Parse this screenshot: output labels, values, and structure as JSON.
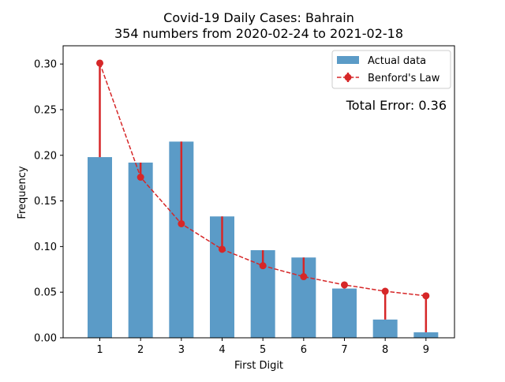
{
  "chart_data": {
    "type": "bar",
    "title": "Covid-19 Daily Cases: Bahrain",
    "subtitle": "354 numbers from 2020-02-24 to 2021-02-18",
    "xlabel": "First Digit",
    "ylabel": "Frequency",
    "categories": [
      "1",
      "2",
      "3",
      "4",
      "5",
      "6",
      "7",
      "8",
      "9"
    ],
    "x": [
      1,
      2,
      3,
      4,
      5,
      6,
      7,
      8,
      9
    ],
    "ylim": [
      0,
      0.32
    ],
    "yticks": [
      0.0,
      0.05,
      0.1,
      0.15,
      0.2,
      0.25,
      0.3
    ],
    "ytick_labels": [
      "0.00",
      "0.05",
      "0.10",
      "0.15",
      "0.20",
      "0.25",
      "0.30"
    ],
    "series": [
      {
        "name": "Actual data",
        "kind": "bar",
        "color": "#5b9bc7",
        "values": [
          0.198,
          0.192,
          0.215,
          0.133,
          0.096,
          0.088,
          0.054,
          0.02,
          0.006
        ]
      },
      {
        "name": "Benford's Law",
        "kind": "line",
        "style": "dashed",
        "marker": "circle",
        "color": "#d62728",
        "values": [
          0.301,
          0.176,
          0.125,
          0.097,
          0.079,
          0.067,
          0.058,
          0.051,
          0.046
        ]
      }
    ],
    "annotation": {
      "text": "Total Error: 0.36",
      "color": "#d62728"
    },
    "legend": {
      "position": "top-right"
    },
    "grid": false
  }
}
